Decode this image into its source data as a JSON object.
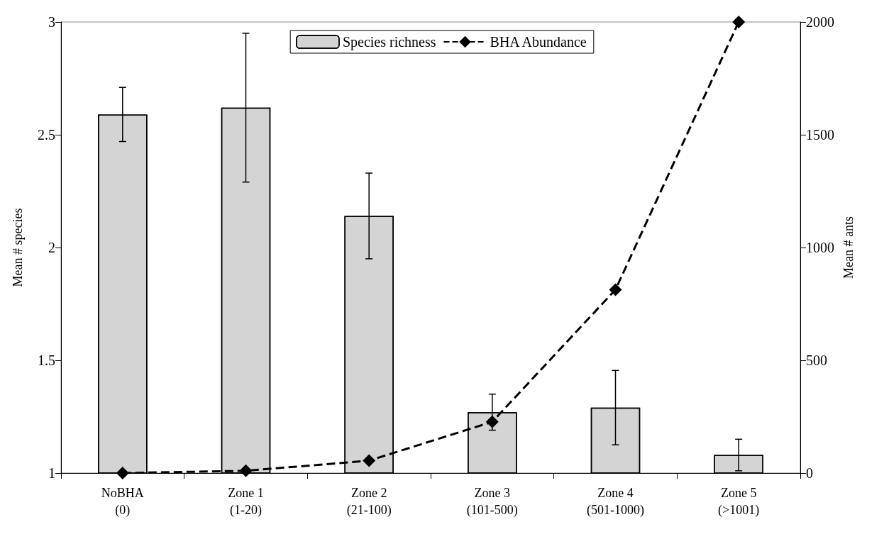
{
  "chart_data": {
    "type": "bar",
    "categories": [
      "NoBHA\n(0)",
      "Zone 1\n(1-20)",
      "Zone 2\n(21-100)",
      "Zone 3\n(101-500)",
      "Zone 4\n(501-1000)",
      "Zone 5\n(>1001)"
    ],
    "ylabel": "Mean # species",
    "y2label": "Mean # ants",
    "ylim": [
      1,
      3
    ],
    "yticks": [
      1,
      1.5,
      2,
      2.5,
      3
    ],
    "y2lim": [
      0,
      2000
    ],
    "y2ticks": [
      0,
      500,
      1000,
      1500,
      2000
    ],
    "grid": false,
    "legend": "top",
    "series": [
      {
        "name": "Species richness",
        "color": "#d4d4d4",
        "values": [
          2.59,
          2.62,
          2.14,
          1.27,
          1.29,
          1.08
        ],
        "errors": [
          0.12,
          0.33,
          0.19,
          0.08,
          0.165,
          0.07
        ]
      },
      {
        "name": "BHA Abundance",
        "type": "line",
        "axis": "y2",
        "color": "#000000",
        "marker": "diamond",
        "line_style": "dashed",
        "values": [
          0,
          10,
          55,
          227,
          813,
          2000
        ]
      }
    ]
  }
}
